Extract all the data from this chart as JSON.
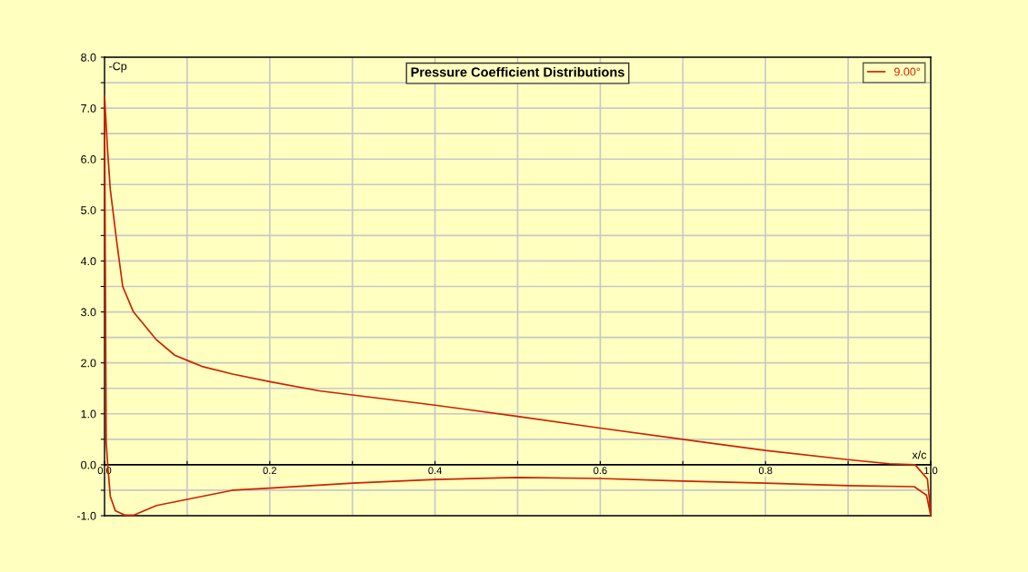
{
  "chart_data": {
    "type": "line",
    "title": "Pressure Coefficient Distributions",
    "xlabel": "x/c",
    "ylabel": "-Cp",
    "series": [
      {
        "name": "9.00°",
        "color": "#cc2200",
        "x": [
          1.0,
          0.996,
          0.981,
          0.95,
          0.9,
          0.8,
          0.7,
          0.6,
          0.5,
          0.4,
          0.3,
          0.26,
          0.2,
          0.155,
          0.118,
          0.1,
          0.085,
          0.063,
          0.035,
          0.022,
          0.015,
          0.007,
          0.004,
          0.0,
          0.002,
          0.004,
          0.007,
          0.013,
          0.025,
          0.035,
          0.063,
          0.1,
          0.155,
          0.2,
          0.3,
          0.4,
          0.5,
          0.6,
          0.7,
          0.8,
          0.9,
          0.98,
          0.995,
          1.0
        ],
        "values": [
          -0.95,
          -0.28,
          0.0,
          0.02,
          0.1,
          0.28,
          0.5,
          0.72,
          0.95,
          1.17,
          1.37,
          1.45,
          1.63,
          1.78,
          1.93,
          2.05,
          2.15,
          2.45,
          3.0,
          3.5,
          4.35,
          5.4,
          6.1,
          7.25,
          0.45,
          -0.03,
          -0.62,
          -0.9,
          -0.99,
          -0.99,
          -0.8,
          -0.68,
          -0.5,
          -0.46,
          -0.36,
          -0.29,
          -0.25,
          -0.27,
          -0.32,
          -0.36,
          -0.41,
          -0.43,
          -0.6,
          -1.0
        ]
      }
    ],
    "xlim": [
      0.0,
      1.0
    ],
    "ylim": [
      -1.0,
      8.0
    ],
    "xticks": [
      {
        "value": 0,
        "label": "0.0"
      },
      {
        "value": 0.1,
        "label": null
      },
      0.2,
      {
        "value": 0.3,
        "label": null
      },
      0.4,
      {
        "value": 0.5,
        "label": null
      },
      0.6,
      {
        "value": 0.7,
        "label": null
      },
      0.8,
      {
        "value": 0.9,
        "label": null
      },
      {
        "value": 1,
        "label": "1.0"
      }
    ],
    "yticks": [
      {
        "value": -1,
        "label": "-1.0"
      },
      {
        "value": -0.5,
        "label": null
      },
      {
        "value": 0,
        "label": "0.0"
      },
      {
        "value": 0.5,
        "label": null
      },
      {
        "value": 1,
        "label": "1.0"
      },
      {
        "value": 1.5,
        "label": null
      },
      {
        "value": 2,
        "label": "2.0"
      },
      {
        "value": 2.5,
        "label": null
      },
      {
        "value": 3,
        "label": "3.0"
      },
      {
        "value": 3.5,
        "label": null
      },
      {
        "value": 4,
        "label": "4.0"
      },
      {
        "value": 4.5,
        "label": null
      },
      {
        "value": 5,
        "label": "5.0"
      },
      {
        "value": 5.5,
        "label": null
      },
      {
        "value": 6,
        "label": "6.0"
      },
      {
        "value": 6.5,
        "label": null
      },
      {
        "value": 7,
        "label": "7.0"
      },
      {
        "value": 7.5,
        "label": null
      },
      {
        "value": 8,
        "label": "8.0"
      }
    ],
    "grid": true,
    "legend": "top right",
    "marker": "none",
    "line_style": "solid"
  }
}
